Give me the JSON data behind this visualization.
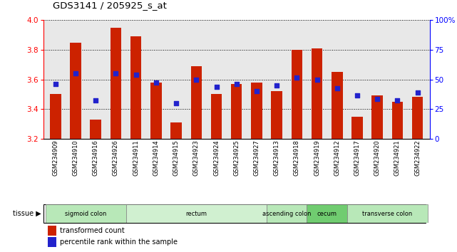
{
  "title": "GDS3141 / 205925_s_at",
  "samples": [
    "GSM234909",
    "GSM234910",
    "GSM234916",
    "GSM234926",
    "GSM234911",
    "GSM234914",
    "GSM234915",
    "GSM234923",
    "GSM234924",
    "GSM234925",
    "GSM234927",
    "GSM234913",
    "GSM234918",
    "GSM234919",
    "GSM234912",
    "GSM234917",
    "GSM234920",
    "GSM234921",
    "GSM234922"
  ],
  "bar_values": [
    3.5,
    3.85,
    3.33,
    3.95,
    3.89,
    3.58,
    3.31,
    3.69,
    3.5,
    3.57,
    3.58,
    3.52,
    3.8,
    3.81,
    3.65,
    3.35,
    3.49,
    3.45,
    3.48
  ],
  "percentile_values": [
    3.57,
    3.64,
    3.46,
    3.64,
    3.63,
    3.58,
    3.44,
    3.6,
    3.55,
    3.57,
    3.52,
    3.56,
    3.61,
    3.6,
    3.54,
    3.49,
    3.47,
    3.46,
    3.51
  ],
  "tissue_groups": [
    {
      "label": "sigmoid colon",
      "start": 0,
      "end": 3
    },
    {
      "label": "rectum",
      "start": 4,
      "end": 10
    },
    {
      "label": "ascending colon",
      "start": 11,
      "end": 12
    },
    {
      "label": "cecum",
      "start": 13,
      "end": 14
    },
    {
      "label": "transverse colon",
      "start": 15,
      "end": 18
    }
  ],
  "tissue_colors": {
    "sigmoid colon": "#b8e8b8",
    "rectum": "#d0f0d0",
    "ascending colon": "#b8e8b8",
    "cecum": "#70cc70",
    "transverse colon": "#b8e8b8"
  },
  "ylim": [
    3.2,
    4.0
  ],
  "yticks": [
    3.2,
    3.4,
    3.6,
    3.8,
    4.0
  ],
  "right_yticks_vals": [
    0,
    25,
    50,
    75,
    100
  ],
  "right_yticks_labels": [
    "0",
    "25",
    "50",
    "75",
    "100%"
  ],
  "bar_color": "#cc2200",
  "dot_color": "#2222cc",
  "bar_width": 0.55,
  "plot_bg_color": "#e8e8e8",
  "legend_red_label": "transformed count",
  "legend_blue_label": "percentile rank within the sample",
  "tissue_label": "tissue"
}
